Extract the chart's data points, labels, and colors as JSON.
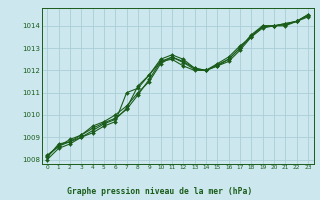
{
  "title": "Graphe pression niveau de la mer (hPa)",
  "bg_color": "#cce8ee",
  "grid_color": "#aacdd6",
  "line_color": "#1a5c1a",
  "text_color": "#1a5c1a",
  "ylim": [
    1007.8,
    1014.8
  ],
  "xlim": [
    -0.5,
    23.5
  ],
  "yticks": [
    1008,
    1009,
    1010,
    1011,
    1012,
    1013,
    1014
  ],
  "xticks": [
    0,
    1,
    2,
    3,
    4,
    5,
    6,
    7,
    8,
    9,
    10,
    11,
    12,
    13,
    14,
    15,
    16,
    17,
    18,
    19,
    20,
    21,
    22,
    23
  ],
  "series": [
    [
      1008.1,
      1008.7,
      1008.8,
      1009.0,
      1009.3,
      1009.6,
      1009.8,
      1010.3,
      1011.3,
      1011.8,
      1012.5,
      1012.7,
      1012.5,
      1012.1,
      1012.0,
      1012.2,
      1012.5,
      1013.0,
      1013.6,
      1014.0,
      1014.0,
      1014.1,
      1014.2,
      1014.5
    ],
    [
      1008.2,
      1008.6,
      1008.9,
      1009.1,
      1009.5,
      1009.7,
      1010.0,
      1010.4,
      1011.0,
      1011.5,
      1012.3,
      1012.6,
      1012.4,
      1012.1,
      1012.0,
      1012.3,
      1012.6,
      1013.1,
      1013.5,
      1014.0,
      1014.0,
      1014.0,
      1014.2,
      1014.4
    ],
    [
      1008.0,
      1008.5,
      1008.7,
      1009.0,
      1009.2,
      1009.5,
      1009.7,
      1011.0,
      1011.2,
      1011.8,
      1012.4,
      1012.5,
      1012.2,
      1012.0,
      1012.0,
      1012.2,
      1012.4,
      1012.9,
      1013.5,
      1013.9,
      1014.0,
      1014.1,
      1014.2,
      1014.5
    ],
    [
      1008.15,
      1008.6,
      1008.8,
      1009.1,
      1009.4,
      1009.65,
      1009.85,
      1010.25,
      1010.9,
      1011.6,
      1012.4,
      1012.6,
      1012.35,
      1012.05,
      1012.0,
      1012.25,
      1012.5,
      1013.0,
      1013.55,
      1013.95,
      1014.0,
      1014.05,
      1014.2,
      1014.45
    ]
  ]
}
